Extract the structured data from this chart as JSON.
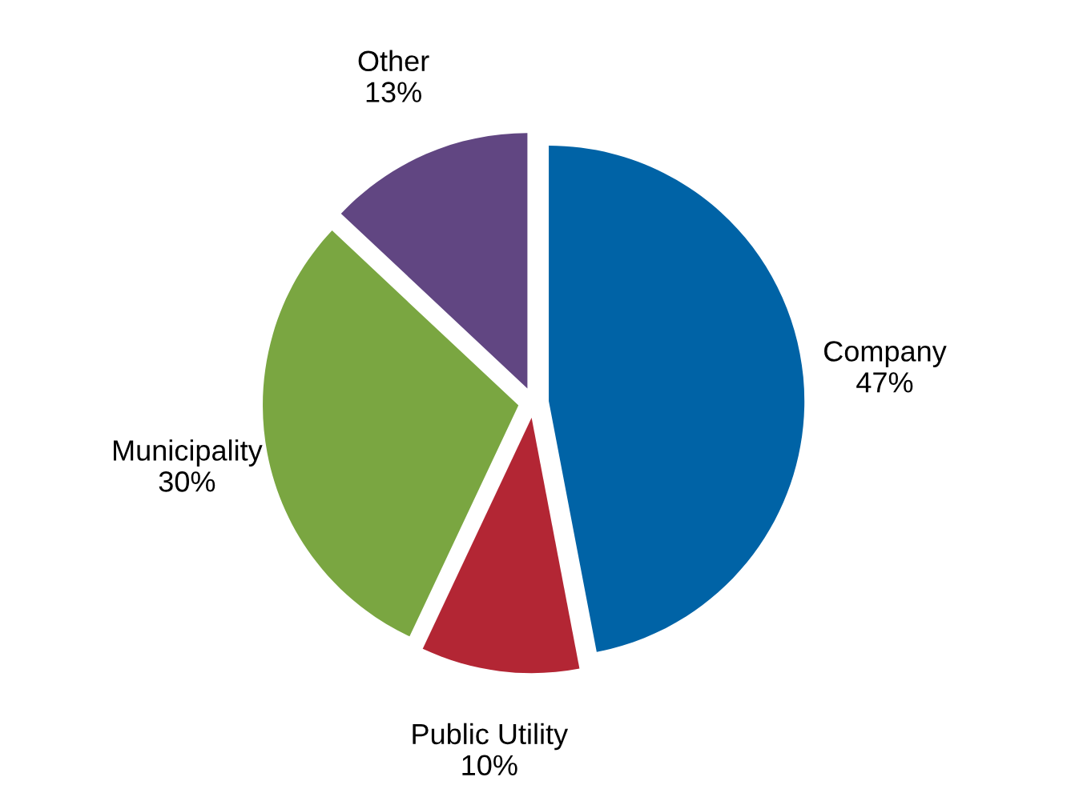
{
  "chart_data": {
    "type": "pie",
    "categories": [
      "Company",
      "Public Utility",
      "Municipality",
      "Other"
    ],
    "values": [
      47,
      10,
      30,
      13
    ],
    "value_labels": [
      "47%",
      "10%",
      "30%",
      "13%"
    ],
    "colors": [
      "#0063a6",
      "#b32634",
      "#7aa641",
      "#614682"
    ],
    "legend": false
  }
}
